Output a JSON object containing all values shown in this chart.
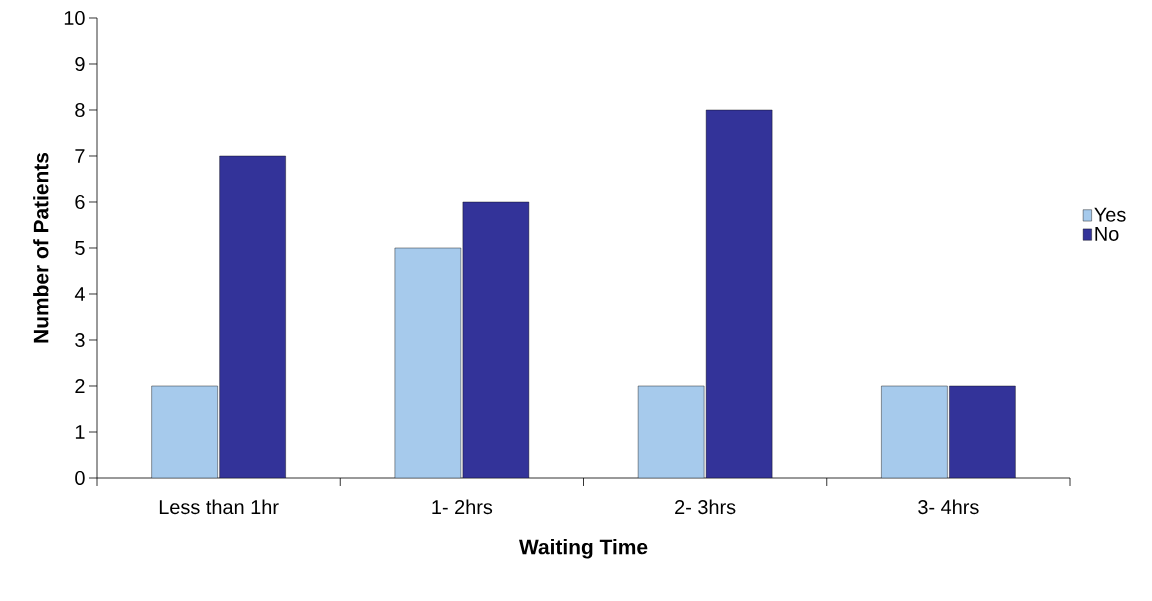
{
  "chart_data": {
    "type": "bar",
    "xlabel": "Waiting Time",
    "ylabel": "Number of Patients",
    "categories": [
      "Less than 1hr",
      "1- 2hrs",
      "2- 3hrs",
      "3- 4hrs"
    ],
    "series": [
      {
        "name": "Yes",
        "color": "#a6caec",
        "values": [
          2,
          5,
          2,
          2
        ]
      },
      {
        "name": "No",
        "color": "#333399",
        "values": [
          7,
          6,
          8,
          2
        ]
      }
    ],
    "ylim": [
      0,
      10
    ],
    "yticks": [
      0,
      1,
      2,
      3,
      4,
      5,
      6,
      7,
      8,
      9,
      10
    ],
    "grid": false,
    "legend": "right"
  }
}
